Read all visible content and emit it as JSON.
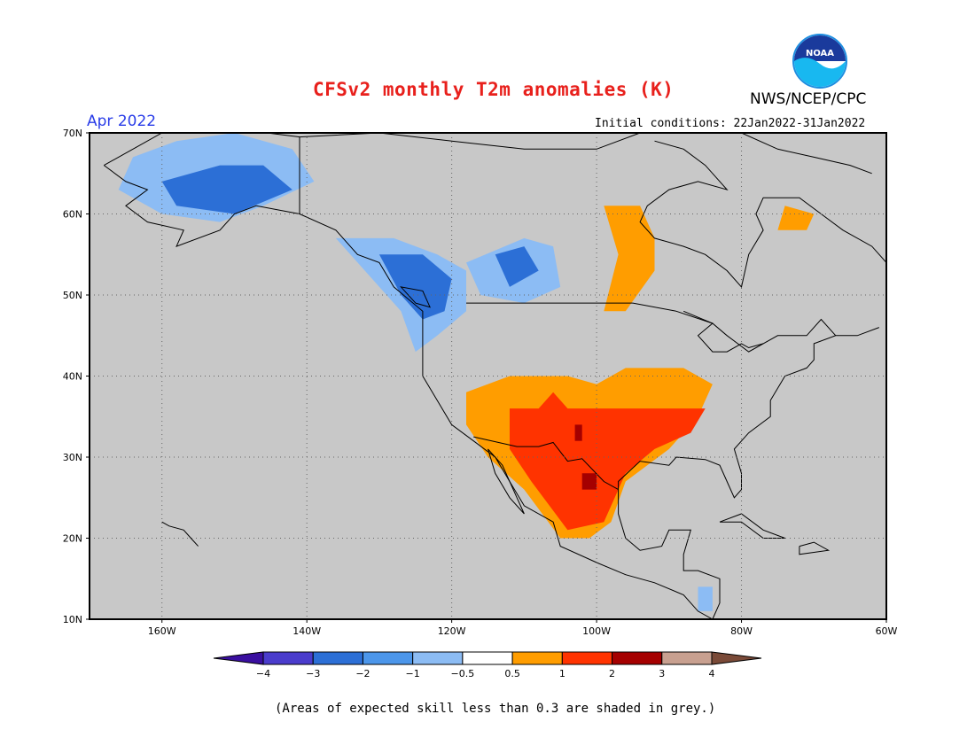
{
  "header": {
    "title": "CFSv2 monthly T2m anomalies (K)",
    "agency": "NWS/NCEP/CPC",
    "logo_text": "NOAA",
    "valid_month": "Apr 2022",
    "initial_conditions": "Initial conditions: 22Jan2022-31Jan2022"
  },
  "map": {
    "projection": "lat-lon",
    "lat_range": [
      10,
      70
    ],
    "lon_range": [
      -170,
      -60
    ],
    "lat_ticks": [
      {
        "value": 10,
        "label": "10N"
      },
      {
        "value": 20,
        "label": "20N"
      },
      {
        "value": 30,
        "label": "30N"
      },
      {
        "value": 40,
        "label": "40N"
      },
      {
        "value": 50,
        "label": "50N"
      },
      {
        "value": 60,
        "label": "60N"
      },
      {
        "value": 70,
        "label": "70N"
      }
    ],
    "lon_ticks": [
      {
        "value": -160,
        "label": "160W"
      },
      {
        "value": -140,
        "label": "140W"
      },
      {
        "value": -120,
        "label": "120W"
      },
      {
        "value": -100,
        "label": "100W"
      },
      {
        "value": -80,
        "label": "80W"
      },
      {
        "value": -60,
        "label": "60W"
      }
    ],
    "background_color": "#c8c8c8",
    "gridlines": "dotted",
    "anomaly_regions": [
      {
        "name": "alaska-cold",
        "value": -1,
        "polygon": [
          [
            -164,
            67
          ],
          [
            -158,
            69
          ],
          [
            -150,
            70
          ],
          [
            -142,
            68
          ],
          [
            -139,
            64
          ],
          [
            -146,
            61
          ],
          [
            -152,
            59
          ],
          [
            -160,
            60
          ],
          [
            -166,
            63
          ]
        ]
      },
      {
        "name": "alaska-cold-core",
        "value": -2,
        "polygon": [
          [
            -160,
            64
          ],
          [
            -152,
            66
          ],
          [
            -146,
            66
          ],
          [
            -142,
            63
          ],
          [
            -150,
            60
          ],
          [
            -158,
            61
          ]
        ]
      },
      {
        "name": "northwest-cold",
        "value": -1,
        "polygon": [
          [
            -136,
            57
          ],
          [
            -128,
            57
          ],
          [
            -122,
            55
          ],
          [
            -118,
            53
          ],
          [
            -118,
            48
          ],
          [
            -122,
            45
          ],
          [
            -125,
            43
          ],
          [
            -127,
            48
          ],
          [
            -132,
            53
          ]
        ]
      },
      {
        "name": "northwest-cold-core",
        "value": -2,
        "polygon": [
          [
            -130,
            55
          ],
          [
            -124,
            55
          ],
          [
            -120,
            52
          ],
          [
            -121,
            48
          ],
          [
            -124,
            47
          ],
          [
            -127,
            50
          ]
        ]
      },
      {
        "name": "prairie-cold",
        "value": -1,
        "polygon": [
          [
            -118,
            54
          ],
          [
            -110,
            57
          ],
          [
            -106,
            56
          ],
          [
            -105,
            51
          ],
          [
            -110,
            49
          ],
          [
            -116,
            50
          ]
        ]
      },
      {
        "name": "prairie-cold-core",
        "value": -2,
        "polygon": [
          [
            -114,
            55
          ],
          [
            -110,
            56
          ],
          [
            -108,
            53
          ],
          [
            -112,
            51
          ]
        ]
      },
      {
        "name": "hudson-warm",
        "value": 1,
        "polygon": [
          [
            -99,
            61
          ],
          [
            -94,
            61
          ],
          [
            -92,
            57
          ],
          [
            -92,
            53
          ],
          [
            -96,
            48
          ],
          [
            -99,
            48
          ],
          [
            -97,
            55
          ]
        ]
      },
      {
        "name": "labrador-warm",
        "value": 1,
        "polygon": [
          [
            -74,
            61
          ],
          [
            -70,
            60
          ],
          [
            -71,
            58
          ],
          [
            -75,
            58
          ]
        ]
      },
      {
        "name": "south-central-warm",
        "value": 1,
        "polygon": [
          [
            -118,
            38
          ],
          [
            -112,
            40
          ],
          [
            -104,
            40
          ],
          [
            -100,
            39
          ],
          [
            -96,
            41
          ],
          [
            -88,
            41
          ],
          [
            -84,
            39
          ],
          [
            -86,
            35
          ],
          [
            -90,
            31
          ],
          [
            -96,
            27
          ],
          [
            -98,
            22
          ],
          [
            -101,
            20
          ],
          [
            -105,
            20
          ],
          [
            -110,
            26
          ],
          [
            -115,
            30
          ],
          [
            -118,
            34
          ]
        ]
      },
      {
        "name": "south-central-hot",
        "value": 2,
        "polygon": [
          [
            -112,
            36
          ],
          [
            -108,
            36
          ],
          [
            -106,
            38
          ],
          [
            -104,
            36
          ],
          [
            -96,
            36
          ],
          [
            -90,
            36
          ],
          [
            -85,
            36
          ],
          [
            -87,
            33
          ],
          [
            -92,
            31
          ],
          [
            -96,
            28
          ],
          [
            -99,
            22
          ],
          [
            -104,
            21
          ],
          [
            -109,
            27
          ],
          [
            -112,
            31
          ]
        ]
      },
      {
        "name": "texas-hotspot",
        "value": 3,
        "polygon": [
          [
            -102,
            28
          ],
          [
            -100,
            28
          ],
          [
            -100,
            26
          ],
          [
            -102,
            26
          ]
        ]
      },
      {
        "name": "panhandle-hotspot",
        "value": 3,
        "polygon": [
          [
            -103,
            34
          ],
          [
            -102,
            34
          ],
          [
            -102,
            32
          ],
          [
            -103,
            32
          ]
        ]
      },
      {
        "name": "central-america-cold",
        "value": -1,
        "polygon": [
          [
            -86,
            14
          ],
          [
            -84,
            14
          ],
          [
            -84,
            11
          ],
          [
            -86,
            11
          ]
        ]
      }
    ]
  },
  "colorbar": {
    "labels": [
      "−4",
      "−3",
      "−2",
      "−1",
      "−0.5",
      "0.5",
      "1",
      "2",
      "3",
      "4"
    ],
    "colors": [
      "#3a0fa0",
      "#4a3ccc",
      "#2c6fd6",
      "#4c96ea",
      "#8cbcf4",
      "#ffffff",
      "#ff9d00",
      "#ff3300",
      "#a50000",
      "#c8a090",
      "#7a4a38"
    ],
    "bin_values": [
      -4.5,
      -3.5,
      -2.5,
      -1.5,
      -0.75,
      0,
      0.75,
      1.5,
      2.5,
      3.5,
      4.5
    ]
  },
  "footer": {
    "note": "(Areas of expected skill less than 0.3 are shaded in grey.)"
  }
}
